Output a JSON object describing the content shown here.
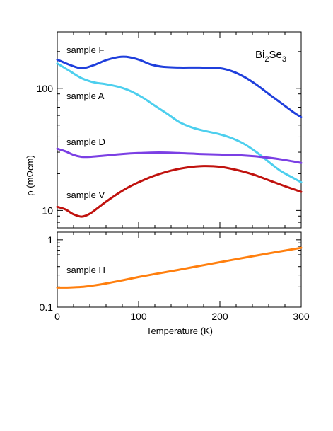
{
  "chart_data": [
    {
      "type": "line",
      "panel": "upper",
      "annotation": {
        "base1": "Bi",
        "sub1": "2",
        "base2": "Se",
        "sub2": "3"
      },
      "ylabel": "ρ (mΩcm)",
      "yscale": "log",
      "ylim": [
        7.2,
        290
      ],
      "xlim": [
        0,
        300
      ],
      "y_ticks": [
        10,
        100
      ],
      "y_tick_labels": [
        "10",
        "100"
      ],
      "series": [
        {
          "name": "sample F",
          "color": "#1f3fdc",
          "x": [
            0,
            15,
            30,
            45,
            60,
            75,
            85,
            100,
            115,
            130,
            150,
            175,
            200,
            215,
            230,
            245,
            260,
            275,
            290,
            300
          ],
          "y": [
            172,
            156,
            146,
            155,
            170,
            180,
            181,
            172,
            157,
            150,
            148,
            148,
            146,
            138,
            124,
            107,
            90,
            76,
            64,
            58
          ]
        },
        {
          "name": "sample A",
          "color": "#4dcfee",
          "x": [
            0,
            15,
            30,
            45,
            60,
            75,
            90,
            105,
            120,
            135,
            150,
            165,
            180,
            200,
            215,
            230,
            245,
            260,
            275,
            290,
            300
          ],
          "y": [
            160,
            139,
            121,
            112,
            108,
            103,
            95,
            84,
            72,
            62,
            53,
            48,
            45,
            42,
            39,
            35,
            30,
            25,
            21,
            18.5,
            17
          ]
        },
        {
          "name": "sample D",
          "color": "#7b3fe4",
          "x": [
            0,
            10,
            20,
            30,
            40,
            60,
            80,
            100,
            125,
            150,
            175,
            200,
            225,
            250,
            275,
            300
          ],
          "y": [
            32,
            30.5,
            28.5,
            27.5,
            27.5,
            28.2,
            29,
            29.5,
            29.8,
            29.5,
            29,
            28.7,
            28.3,
            27.5,
            26.2,
            24.5
          ]
        },
        {
          "name": "sample V",
          "color": "#c0120e",
          "x": [
            0,
            10,
            20,
            30,
            40,
            50,
            60,
            75,
            90,
            105,
            120,
            140,
            160,
            180,
            200,
            220,
            240,
            260,
            280,
            300
          ],
          "y": [
            10.7,
            10.2,
            9.3,
            8.9,
            9.4,
            10.5,
            11.8,
            13.8,
            15.8,
            17.6,
            19.3,
            21.2,
            22.5,
            23.1,
            22.8,
            21.5,
            19.8,
            17.7,
            15.8,
            14.2
          ]
        }
      ]
    },
    {
      "type": "line",
      "panel": "lower",
      "xlabel": "Temperature (K)",
      "yscale": "log",
      "ylim": [
        0.1,
        1.3
      ],
      "xlim": [
        0,
        300
      ],
      "x_ticks": [
        0,
        100,
        200,
        300
      ],
      "x_tick_labels": [
        "0",
        "100",
        "200",
        "300"
      ],
      "y_ticks": [
        0.1,
        1
      ],
      "y_tick_labels": [
        "0.1",
        "1"
      ],
      "series": [
        {
          "name": "sample H",
          "color": "#ff7f0e",
          "x": [
            0,
            15,
            30,
            45,
            60,
            80,
            100,
            120,
            150,
            180,
            210,
            240,
            270,
            300
          ],
          "y": [
            0.195,
            0.196,
            0.2,
            0.21,
            0.225,
            0.25,
            0.28,
            0.31,
            0.36,
            0.42,
            0.49,
            0.57,
            0.66,
            0.76
          ]
        }
      ]
    }
  ]
}
